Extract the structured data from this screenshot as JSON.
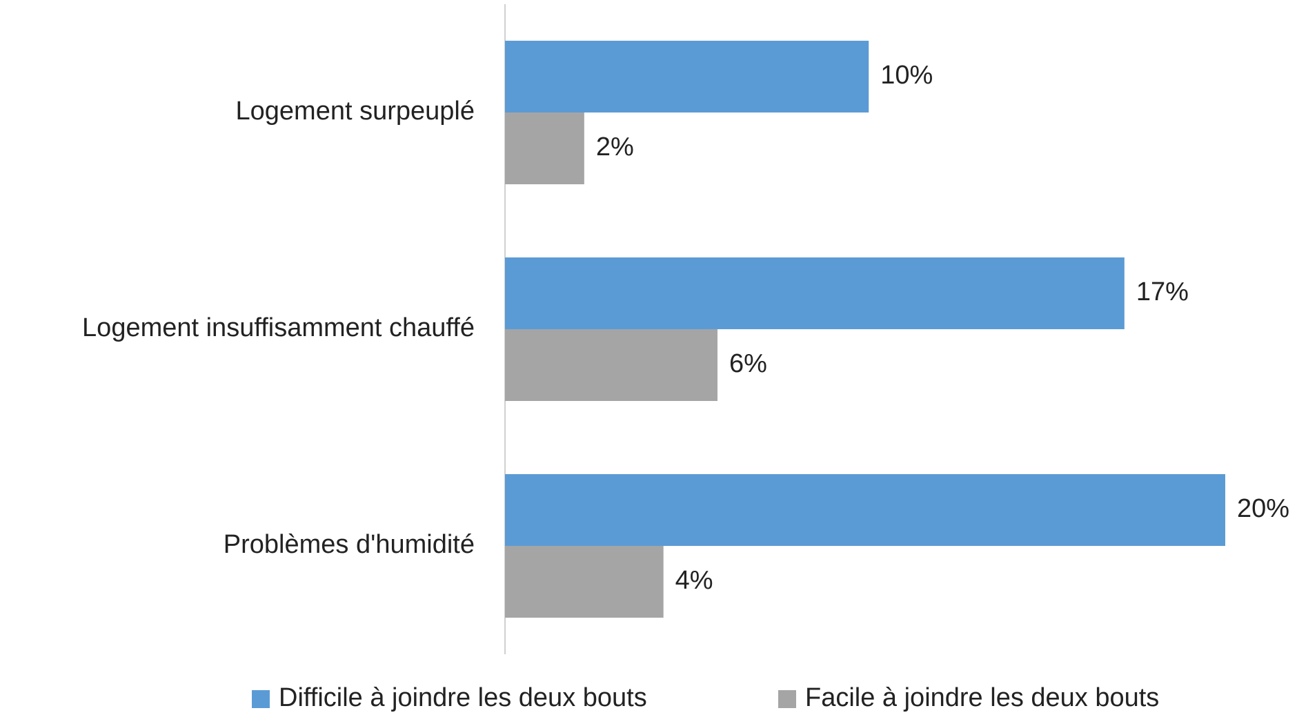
{
  "chart_data": {
    "type": "bar",
    "orientation": "horizontal",
    "categories": [
      "Logement surpeuplé",
      "Logement insuffisamment chauffé",
      "Problèmes d'humidité"
    ],
    "series": [
      {
        "name": "Difficile à joindre les deux bouts",
        "color": "#5b9bd5",
        "values": [
          10.1,
          17.2,
          20.0
        ],
        "value_labels": [
          "10%",
          "17%",
          "20%"
        ]
      },
      {
        "name": "Facile à joindre les deux bouts",
        "color": "#a5a5a5",
        "values": [
          2.2,
          5.9,
          4.4
        ],
        "value_labels": [
          "2%",
          "6%",
          "4%"
        ]
      }
    ],
    "xlim": [
      0,
      20
    ],
    "legend": "bottom"
  }
}
